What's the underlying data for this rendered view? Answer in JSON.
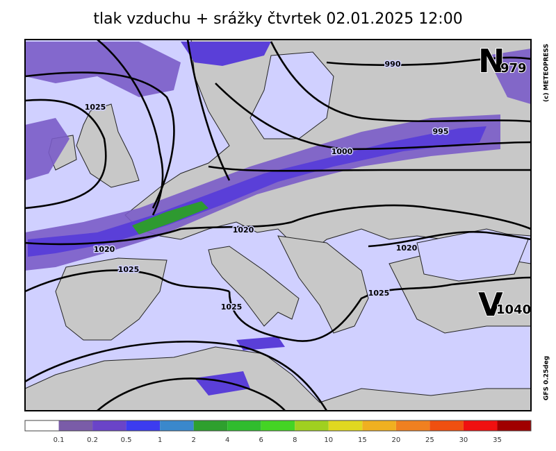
{
  "title": "tlak vzduchu + srážky čtvrtek 02.01.2025 12:00",
  "isobar_labels": [
    "990",
    "995",
    "1000",
    "1025",
    "1020",
    "1020",
    "1020",
    "1025",
    "1025",
    "1025"
  ],
  "pressure_centers": [
    {
      "letter": "N",
      "value": "979"
    },
    {
      "letter": "V",
      "value": "1040"
    }
  ],
  "credits": {
    "copyright": "(c) METEOPRESS",
    "model": "GFS 0.25deg"
  },
  "legend": {
    "labels": [
      "0.1",
      "0.2",
      "0.5",
      "1",
      "2",
      "4",
      "6",
      "8",
      "10",
      "15",
      "20",
      "25",
      "30",
      "35"
    ],
    "colors": [
      "#ffffff",
      "#7a5ca8",
      "#6a44c8",
      "#3c3cf0",
      "#3a88cc",
      "#2ea02e",
      "#30bc2e",
      "#44d424",
      "#a0d020",
      "#e0d820",
      "#f0b020",
      "#f08020",
      "#f05010",
      "#f01010",
      "#a00000"
    ]
  }
}
